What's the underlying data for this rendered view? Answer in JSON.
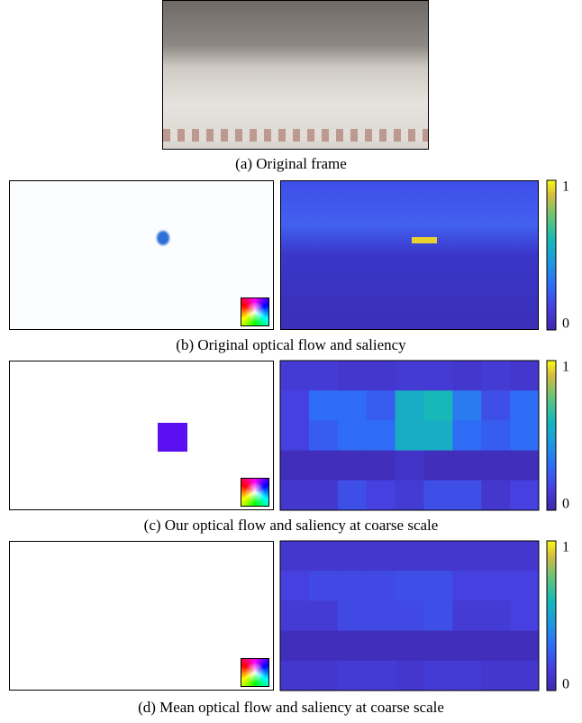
{
  "figure": {
    "panels": [
      {
        "caption": "(a) Original frame"
      },
      {
        "caption": "(b) Original optical flow and saliency",
        "colorbar": {
          "ticks": [
            0,
            1
          ]
        }
      },
      {
        "caption": "(c) Our optical flow and saliency at coarse scale",
        "colorbar": {
          "ticks": [
            0,
            1
          ]
        },
        "saliency": [
          [
            0.12,
            0.12,
            0.1,
            0.1,
            0.12,
            0.12,
            0.1,
            0.12,
            0.1
          ],
          [
            0.15,
            0.3,
            0.3,
            0.25,
            0.55,
            0.6,
            0.35,
            0.2,
            0.3
          ],
          [
            0.15,
            0.25,
            0.3,
            0.3,
            0.55,
            0.55,
            0.3,
            0.25,
            0.3
          ],
          [
            0.05,
            0.05,
            0.05,
            0.05,
            0.08,
            0.05,
            0.05,
            0.05,
            0.05
          ],
          [
            0.1,
            0.1,
            0.2,
            0.15,
            0.12,
            0.2,
            0.2,
            0.1,
            0.15
          ]
        ]
      },
      {
        "caption": "(d) Mean optical flow and saliency at coarse scale",
        "colorbar": {
          "ticks": [
            0,
            1
          ]
        },
        "saliency": [
          [
            0.1,
            0.1,
            0.1,
            0.1,
            0.1,
            0.1,
            0.1,
            0.1,
            0.1
          ],
          [
            0.15,
            0.18,
            0.18,
            0.18,
            0.2,
            0.2,
            0.15,
            0.15,
            0.15
          ],
          [
            0.12,
            0.12,
            0.18,
            0.18,
            0.18,
            0.2,
            0.12,
            0.12,
            0.15
          ],
          [
            0.05,
            0.05,
            0.05,
            0.05,
            0.05,
            0.05,
            0.05,
            0.05,
            0.05
          ],
          [
            0.1,
            0.1,
            0.12,
            0.12,
            0.1,
            0.12,
            0.12,
            0.1,
            0.1
          ]
        ]
      }
    ]
  }
}
